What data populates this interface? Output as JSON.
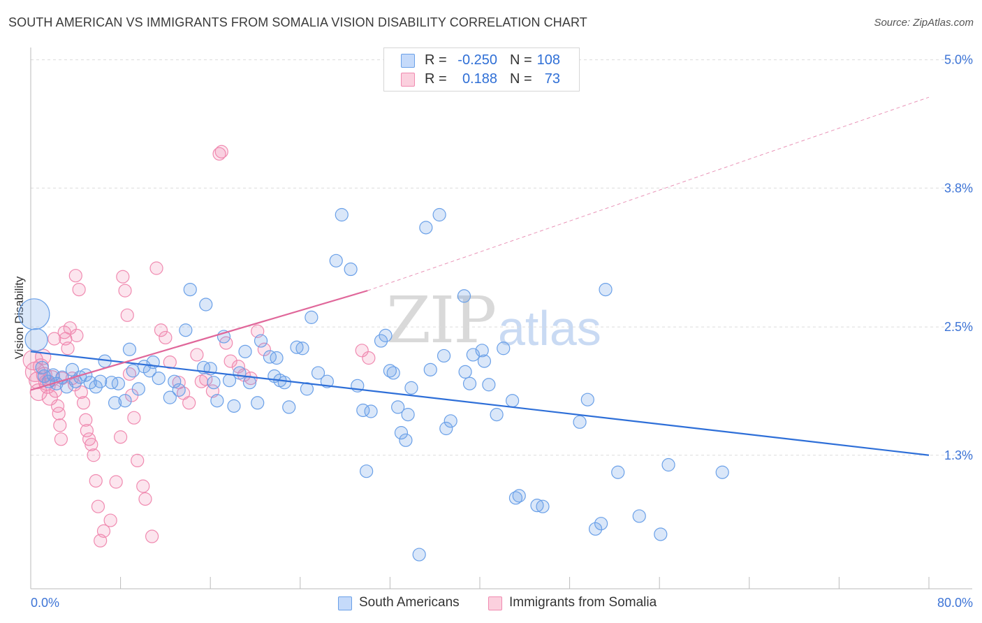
{
  "title": "SOUTH AMERICAN VS IMMIGRANTS FROM SOMALIA VISION DISABILITY CORRELATION CHART",
  "source": "Source: ZipAtlas.com",
  "watermark": {
    "zip": "ZIP",
    "atlas": "atlas"
  },
  "legend": {
    "rows": [
      {
        "r_label": "R =",
        "r_value": "-0.250",
        "n_label": "N =",
        "n_value": "108"
      },
      {
        "r_label": "R =",
        "r_value": "0.188",
        "n_label": "N =",
        "n_value": "73"
      }
    ]
  },
  "bottom_legend": {
    "series1": "South Americans",
    "series2": "Immigrants from Somalia"
  },
  "chart_data": {
    "type": "scatter",
    "title": "SOUTH AMERICAN VS IMMIGRANTS FROM SOMALIA VISION DISABILITY CORRELATION CHART",
    "xlabel": "",
    "ylabel": "Vision Disability",
    "xlim": [
      0,
      80
    ],
    "ylim": [
      0.05,
      5.05
    ],
    "x_tick_labels": [
      "0.0%",
      "80.0%"
    ],
    "y_ticks": [
      1.3,
      2.5,
      3.8,
      5.0
    ],
    "y_tick_labels": [
      "1.3%",
      "2.5%",
      "3.8%",
      "5.0%"
    ],
    "grid": true,
    "legend_position": "top-center",
    "colors": {
      "series1": "#6aa0e8",
      "series2": "#f08ab0",
      "line1": "#2e6fd8",
      "line2": "#e0679a"
    },
    "series": [
      {
        "name": "South Americans",
        "R": -0.25,
        "N": 108,
        "trend": {
          "x": [
            0,
            80
          ],
          "y": [
            2.27,
            1.3
          ]
        },
        "points": [
          [
            0.3,
            2.62,
            22
          ],
          [
            0.5,
            2.38,
            16
          ],
          [
            1.0,
            2.12,
            9
          ],
          [
            1.2,
            2.04,
            9
          ],
          [
            1.6,
            1.99,
            9
          ],
          [
            2.0,
            2.05,
            9
          ],
          [
            2.3,
            1.97,
            9
          ],
          [
            2.8,
            2.03,
            9
          ],
          [
            3.2,
            1.94,
            9
          ],
          [
            3.7,
            2.1,
            9
          ],
          [
            4.0,
            1.99,
            9
          ],
          [
            4.4,
            2.03,
            9
          ],
          [
            4.9,
            2.05,
            9
          ],
          [
            5.3,
            1.98,
            9
          ],
          [
            5.8,
            1.94,
            9
          ],
          [
            6.2,
            1.99,
            9
          ],
          [
            6.6,
            2.18,
            9
          ],
          [
            7.2,
            1.98,
            9
          ],
          [
            7.5,
            1.79,
            9
          ],
          [
            7.8,
            1.97,
            9
          ],
          [
            8.4,
            1.81,
            9
          ],
          [
            8.8,
            2.29,
            9
          ],
          [
            9.1,
            2.09,
            9
          ],
          [
            9.6,
            1.92,
            9
          ],
          [
            10.1,
            2.13,
            9
          ],
          [
            10.6,
            2.09,
            9
          ],
          [
            10.9,
            2.17,
            9
          ],
          [
            11.4,
            2.02,
            9
          ],
          [
            12.4,
            1.84,
            9
          ],
          [
            12.8,
            1.99,
            9
          ],
          [
            13.2,
            1.91,
            9
          ],
          [
            13.8,
            2.47,
            9
          ],
          [
            14.2,
            2.85,
            9
          ],
          [
            15.4,
            2.12,
            9
          ],
          [
            15.6,
            2.71,
            9
          ],
          [
            16.0,
            2.11,
            9
          ],
          [
            16.3,
            1.98,
            9
          ],
          [
            16.6,
            1.81,
            9
          ],
          [
            17.2,
            2.41,
            9
          ],
          [
            17.7,
            2.0,
            9
          ],
          [
            18.1,
            1.76,
            9
          ],
          [
            18.6,
            2.07,
            9
          ],
          [
            19.1,
            2.27,
            9
          ],
          [
            19.5,
            1.98,
            9
          ],
          [
            20.2,
            1.79,
            9
          ],
          [
            20.5,
            2.37,
            9
          ],
          [
            21.3,
            2.22,
            9
          ],
          [
            21.7,
            2.04,
            9
          ],
          [
            21.9,
            2.21,
            9
          ],
          [
            22.2,
            2.0,
            9
          ],
          [
            22.6,
            1.98,
            9
          ],
          [
            23.0,
            1.75,
            9
          ],
          [
            23.7,
            2.31,
            9
          ],
          [
            24.2,
            2.3,
            9
          ],
          [
            24.6,
            1.92,
            9
          ],
          [
            25.0,
            2.59,
            9
          ],
          [
            25.6,
            2.07,
            9
          ],
          [
            26.4,
            1.99,
            9
          ],
          [
            27.2,
            3.12,
            9
          ],
          [
            27.7,
            3.55,
            9
          ],
          [
            28.5,
            3.04,
            9
          ],
          [
            29.1,
            1.95,
            9
          ],
          [
            29.6,
            1.72,
            9
          ],
          [
            29.9,
            1.15,
            9
          ],
          [
            30.3,
            1.71,
            9
          ],
          [
            31.2,
            2.37,
            9
          ],
          [
            31.6,
            2.42,
            9
          ],
          [
            32.0,
            2.09,
            9
          ],
          [
            32.3,
            2.07,
            9
          ],
          [
            32.7,
            1.75,
            9
          ],
          [
            33.0,
            1.51,
            9
          ],
          [
            33.4,
            1.44,
            9
          ],
          [
            33.6,
            1.68,
            9
          ],
          [
            33.9,
            1.93,
            9
          ],
          [
            34.6,
            0.37,
            9
          ],
          [
            35.2,
            3.43,
            9
          ],
          [
            35.6,
            2.1,
            9
          ],
          [
            36.4,
            3.55,
            9
          ],
          [
            36.8,
            2.23,
            9
          ],
          [
            37.0,
            1.55,
            9
          ],
          [
            37.4,
            1.62,
            9
          ],
          [
            38.6,
            2.79,
            9
          ],
          [
            38.7,
            2.08,
            9
          ],
          [
            39.1,
            1.97,
            9
          ],
          [
            39.4,
            2.24,
            9
          ],
          [
            40.2,
            2.28,
            9
          ],
          [
            40.4,
            2.18,
            9
          ],
          [
            40.8,
            1.96,
            9
          ],
          [
            41.5,
            1.68,
            9
          ],
          [
            42.1,
            2.3,
            9
          ],
          [
            42.9,
            1.81,
            9
          ],
          [
            43.2,
            0.9,
            9
          ],
          [
            43.5,
            0.92,
            9
          ],
          [
            45.1,
            0.83,
            9
          ],
          [
            45.6,
            0.82,
            9
          ],
          [
            48.9,
            1.61,
            9
          ],
          [
            49.6,
            1.82,
            9
          ],
          [
            50.3,
            0.61,
            9
          ],
          [
            50.8,
            0.66,
            9
          ],
          [
            51.2,
            2.85,
            9
          ],
          [
            52.3,
            1.14,
            9
          ],
          [
            54.2,
            0.73,
            9
          ],
          [
            56.1,
            0.56,
            9
          ],
          [
            56.8,
            1.21,
            9
          ],
          [
            61.6,
            1.14,
            9
          ]
        ]
      },
      {
        "name": "Immigrants from Somalia",
        "R": 0.188,
        "N": 73,
        "trend": {
          "x": [
            0,
            30
          ],
          "y": [
            1.91,
            2.84
          ]
        },
        "trend_dashed": {
          "x": [
            30,
            80
          ],
          "y": [
            2.84,
            4.65
          ]
        },
        "points": [
          [
            0.2,
            2.19,
            14
          ],
          [
            0.4,
            2.08,
            14
          ],
          [
            0.6,
            2.0,
            12
          ],
          [
            0.7,
            1.89,
            12
          ],
          [
            0.9,
            2.13,
            11
          ],
          [
            1.1,
            2.22,
            11
          ],
          [
            1.2,
            2.05,
            11
          ],
          [
            1.4,
            1.98,
            11
          ],
          [
            1.5,
            1.95,
            11
          ],
          [
            1.7,
            1.84,
            11
          ],
          [
            1.9,
            2.02,
            11
          ],
          [
            2.1,
            2.39,
            9
          ],
          [
            2.2,
            1.9,
            9
          ],
          [
            2.4,
            1.76,
            9
          ],
          [
            2.5,
            1.69,
            9
          ],
          [
            2.6,
            1.58,
            9
          ],
          [
            2.7,
            1.45,
            9
          ],
          [
            2.8,
            2.02,
            9
          ],
          [
            3.0,
            2.45,
            9
          ],
          [
            3.1,
            2.39,
            9
          ],
          [
            3.3,
            2.3,
            9
          ],
          [
            3.5,
            2.49,
            9
          ],
          [
            3.7,
            2.02,
            9
          ],
          [
            3.9,
            1.96,
            9
          ],
          [
            4.0,
            2.98,
            9
          ],
          [
            4.1,
            2.42,
            9
          ],
          [
            4.3,
            2.85,
            9
          ],
          [
            4.5,
            1.89,
            9
          ],
          [
            4.7,
            1.79,
            9
          ],
          [
            4.9,
            1.63,
            9
          ],
          [
            5.0,
            1.53,
            9
          ],
          [
            5.2,
            1.45,
            9
          ],
          [
            5.4,
            1.4,
            9
          ],
          [
            5.6,
            1.3,
            9
          ],
          [
            5.8,
            1.06,
            9
          ],
          [
            6.0,
            0.82,
            9
          ],
          [
            6.2,
            0.5,
            9
          ],
          [
            6.5,
            0.59,
            9
          ],
          [
            7.1,
            0.69,
            9
          ],
          [
            7.6,
            1.05,
            9
          ],
          [
            8.0,
            1.47,
            9
          ],
          [
            8.2,
            2.97,
            9
          ],
          [
            8.4,
            2.84,
            9
          ],
          [
            8.6,
            2.61,
            9
          ],
          [
            8.8,
            2.06,
            9
          ],
          [
            9.0,
            1.86,
            9
          ],
          [
            9.2,
            1.65,
            9
          ],
          [
            9.5,
            1.25,
            9
          ],
          [
            10.0,
            1.01,
            9
          ],
          [
            10.2,
            0.89,
            9
          ],
          [
            10.8,
            0.54,
            9
          ],
          [
            11.2,
            3.05,
            9
          ],
          [
            11.6,
            2.47,
            9
          ],
          [
            12.0,
            2.4,
            9
          ],
          [
            12.4,
            2.17,
            9
          ],
          [
            13.2,
            1.98,
            9
          ],
          [
            13.6,
            1.88,
            9
          ],
          [
            14.1,
            1.79,
            9
          ],
          [
            14.8,
            2.24,
            9
          ],
          [
            15.2,
            1.99,
            9
          ],
          [
            15.6,
            2.01,
            9
          ],
          [
            16.2,
            1.9,
            9
          ],
          [
            16.8,
            4.12,
            9
          ],
          [
            17.0,
            4.14,
            9
          ],
          [
            17.4,
            2.35,
            9
          ],
          [
            17.8,
            2.18,
            9
          ],
          [
            18.5,
            2.13,
            9
          ],
          [
            19.0,
            2.05,
            9
          ],
          [
            19.6,
            2.02,
            9
          ],
          [
            20.2,
            2.46,
            9
          ],
          [
            20.8,
            2.29,
            9
          ],
          [
            29.5,
            2.28,
            9
          ],
          [
            30.1,
            2.21,
            9
          ]
        ]
      }
    ]
  }
}
